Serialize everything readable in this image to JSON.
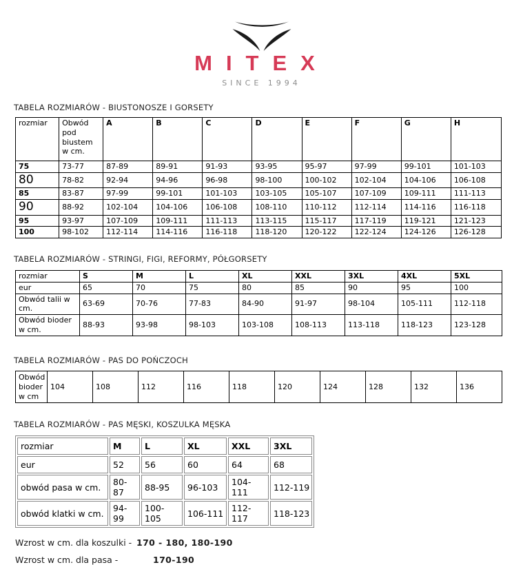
{
  "logo": {
    "name": "MITEX",
    "tagline": "SINCE 1994",
    "brand_color": "#d63a56",
    "mark_icon": "three-swoosh-bird-mark"
  },
  "sections": [
    {
      "title": "TABELA ROZMIARÓW - BIUSTONOSZE I GORSETY"
    },
    {
      "title": "TABELA ROZMIARÓW - STRINGI, FIGI, REFORMY, PÓŁGORSETY"
    },
    {
      "title": "TABELA ROZMIARÓW - PAS DO POŃCZOCH"
    },
    {
      "title": "TABELA ROZMIARÓW - PAS MĘSKI, KOSZULKA MĘSKA"
    }
  ],
  "tables": {
    "bras": {
      "plain_headers": 2,
      "headers": [
        "rozmiar",
        "Obwód pod biustem w cm.",
        "A",
        "B",
        "C",
        "D",
        "E",
        "F",
        "G",
        "H"
      ],
      "rows": [
        {
          "label": "75",
          "bold": true,
          "values": [
            "73-77",
            "87-89",
            "89-91",
            "91-93",
            "93-95",
            "95-97",
            "97-99",
            "99-101",
            "101-103"
          ]
        },
        {
          "label": "80",
          "big": true,
          "values": [
            "78-82",
            "92-94",
            "94-96",
            "96-98",
            "98-100",
            "100-102",
            "102-104",
            "104-106",
            "106-108"
          ]
        },
        {
          "label": "85",
          "bold": true,
          "values": [
            "83-87",
            "97-99",
            "99-101",
            "101-103",
            "103-105",
            "105-107",
            "107-109",
            "109-111",
            "111-113"
          ]
        },
        {
          "label": "90",
          "big": true,
          "values": [
            "88-92",
            "102-104",
            "104-106",
            "106-108",
            "108-110",
            "110-112",
            "112-114",
            "114-116",
            "116-118"
          ]
        },
        {
          "label": "95",
          "bold": true,
          "values": [
            "93-97",
            "107-109",
            "109-111",
            "111-113",
            "113-115",
            "115-117",
            "117-119",
            "119-121",
            "121-123"
          ]
        },
        {
          "label": "100",
          "bold": true,
          "values": [
            "98-102",
            "112-114",
            "114-116",
            "116-118",
            "118-120",
            "120-122",
            "122-124",
            "124-126",
            "126-128"
          ]
        }
      ]
    },
    "panties": {
      "plain_headers": 1,
      "headers": [
        "rozmiar",
        "S",
        "M",
        "L",
        "XL",
        "XXL",
        "3XL",
        "4XL",
        "5XL"
      ],
      "rows": [
        {
          "label": "eur",
          "values": [
            "65",
            "70",
            "75",
            "80",
            "85",
            "90",
            "95",
            "100"
          ]
        },
        {
          "label": "Obwód talii w cm.",
          "values": [
            "63-69",
            "70-76",
            "77-83",
            "84-90",
            "91-97",
            "98-104",
            "105-111",
            "112-118"
          ]
        },
        {
          "label": "Obwód bioder w cm.",
          "values": [
            "88-93",
            "93-98",
            "98-103",
            "103-108",
            "108-113",
            "113-118",
            "118-123",
            "123-128"
          ]
        }
      ]
    },
    "garter": {
      "rows": [
        {
          "label": "Obwód bioder w cm",
          "values": [
            "104",
            "108",
            "112",
            "116",
            "118",
            "120",
            "124",
            "128",
            "132",
            "136"
          ]
        }
      ]
    },
    "mens": {
      "plain_headers": 1,
      "headers": [
        "rozmiar",
        "M",
        "L",
        "XL",
        "XXL",
        "3XL"
      ],
      "rows": [
        {
          "label": "eur",
          "values": [
            "52",
            "56",
            "60",
            "64",
            "68"
          ]
        },
        {
          "label": "obwód pasa w cm.",
          "values": [
            "80-87",
            "88-95",
            "96-103",
            "104-111",
            "112-119"
          ]
        },
        {
          "label": "obwód klatki w cm.",
          "values": [
            "94-99",
            "100-105",
            "106-111",
            "112-117",
            "118-123"
          ]
        }
      ]
    }
  },
  "footnotes": [
    {
      "label": "Wzrost w cm. dla koszulki -",
      "value": "170 - 180, 180-190"
    },
    {
      "label": "Wzrost w cm. dla pasa -",
      "value": "170-190"
    }
  ]
}
